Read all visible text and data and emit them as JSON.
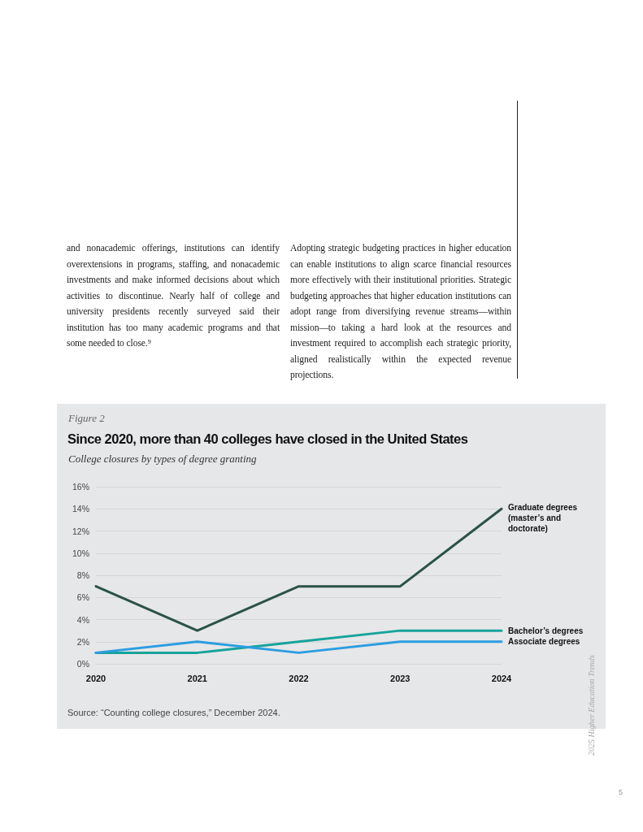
{
  "chart_data": {
    "type": "line",
    "title": "Since 2020, more than 40 colleges have closed in the United States",
    "subtitle": "College closures by types of degree granting",
    "annotations": [
      "and nonacademic offerings, institutions can identify overextensions in programs, staffing, and nonacademic investments and make informed decisions about which activities to discontinue. Nearly half of college and university presidents recently surveyed said their institution has too many academic programs and that some needed to close.⁹",
      "Adopting strategic budgeting practices in higher education can enable institutions to align scarce financial resources more effectively with their institutional priorities. Strategic budgeting approaches that higher education institutions can adopt range from diversifying revenue streams—within mission—to taking a hard look at the resources and investment required to accomplish each strategic priority, aligned realistically within the expected revenue projections.",
      "Figure 2",
      "Source: “Counting college closures,” December 2024.",
      "2025 Higher Education Trends",
      "5"
    ],
    "categories": [
      "2020",
      "2021",
      "2022",
      "2023",
      "2024"
    ],
    "series": [
      {
        "name": "Graduate degrees (master’s and doctorate)",
        "color": "#2b5247",
        "values": [
          7,
          3,
          7,
          7,
          14
        ]
      },
      {
        "name": "Bachelor’s degrees",
        "color": "#17a39b",
        "values": [
          1,
          1,
          2,
          3,
          3
        ]
      },
      {
        "name": "Associate degrees",
        "color": "#2b9de0",
        "values": [
          1,
          2,
          1,
          2,
          2
        ]
      }
    ],
    "ylim": [
      0,
      16
    ],
    "yticks": [
      {
        "value": 0,
        "label": "0%"
      },
      {
        "value": 2,
        "label": "2%"
      },
      {
        "value": 4,
        "label": "4%"
      },
      {
        "value": 6,
        "label": "6%"
      },
      {
        "value": 8,
        "label": "8%"
      },
      {
        "value": 10,
        "label": "10%"
      },
      {
        "value": 12,
        "label": "12%"
      },
      {
        "value": 14,
        "label": "14%"
      },
      {
        "value": 16,
        "label": "16%"
      }
    ],
    "grid": "y",
    "legend": false,
    "marker": "none",
    "line_style": "solid"
  }
}
